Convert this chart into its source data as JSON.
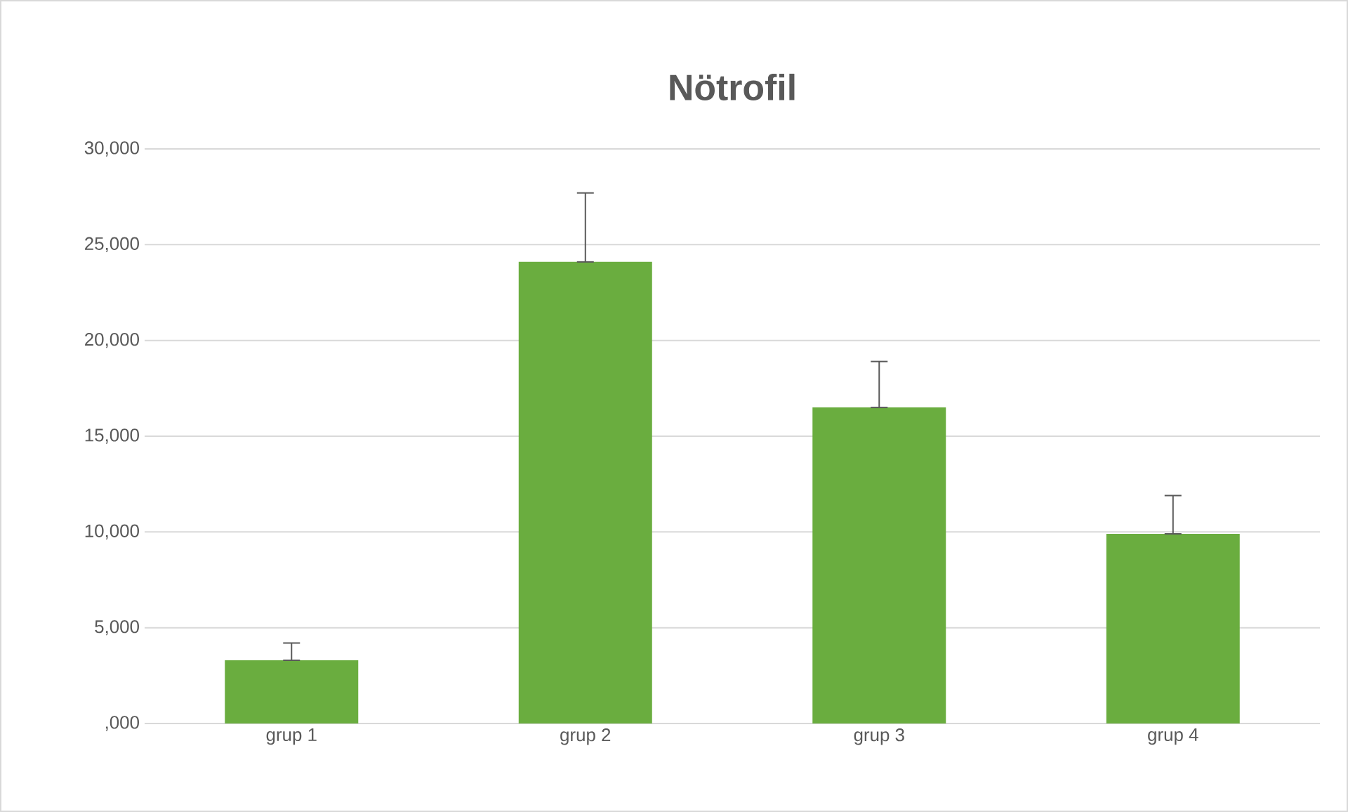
{
  "chart_data": {
    "type": "bar",
    "title": "Nötrofil",
    "categories": [
      "grup 1",
      "grup 2",
      "grup 3",
      "grup 4"
    ],
    "values": [
      3300,
      24100,
      16500,
      9900
    ],
    "errors": [
      [
        3300,
        4200
      ],
      [
        24100,
        27700
      ],
      [
        16500,
        18900
      ],
      [
        9900,
        11900
      ]
    ],
    "color": "#6aad3f",
    "ylim": [
      0,
      30000
    ],
    "yticks": [
      {
        "value": 0,
        "label": ",000"
      },
      {
        "value": 5000,
        "label": "5,000"
      },
      {
        "value": 10000,
        "label": "10,000"
      },
      {
        "value": 15000,
        "label": "15,000"
      },
      {
        "value": 20000,
        "label": "20,000"
      },
      {
        "value": 25000,
        "label": "25,000"
      },
      {
        "value": 30000,
        "label": "30,000"
      }
    ],
    "grid": "y"
  }
}
